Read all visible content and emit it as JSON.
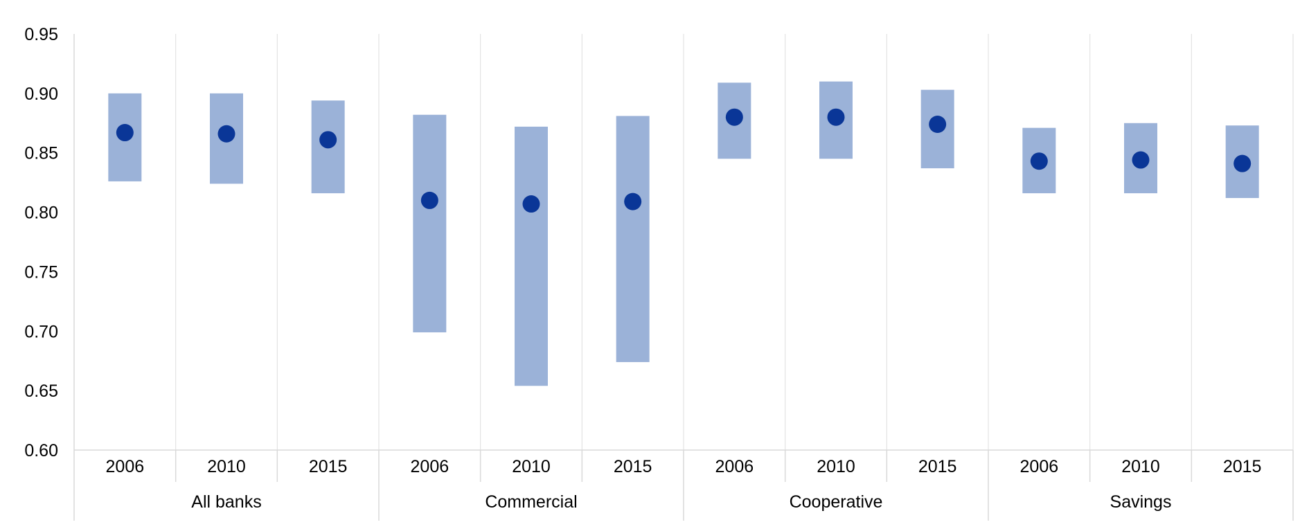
{
  "chart_data": {
    "type": "range-dot",
    "ylim": [
      0.6,
      0.95
    ],
    "yticks": [
      "0.60",
      "0.65",
      "0.70",
      "0.75",
      "0.80",
      "0.85",
      "0.90",
      "0.95"
    ],
    "grid": "vertical",
    "groups": [
      {
        "label": "All banks",
        "points": [
          {
            "year": "2006",
            "low": 0.826,
            "high": 0.9,
            "value": 0.867
          },
          {
            "year": "2010",
            "low": 0.824,
            "high": 0.9,
            "value": 0.866
          },
          {
            "year": "2015",
            "low": 0.816,
            "high": 0.894,
            "value": 0.861
          }
        ]
      },
      {
        "label": "Commercial",
        "points": [
          {
            "year": "2006",
            "low": 0.699,
            "high": 0.882,
            "value": 0.81
          },
          {
            "year": "2010",
            "low": 0.654,
            "high": 0.872,
            "value": 0.807
          },
          {
            "year": "2015",
            "low": 0.674,
            "high": 0.881,
            "value": 0.809
          }
        ]
      },
      {
        "label": "Cooperative",
        "points": [
          {
            "year": "2006",
            "low": 0.845,
            "high": 0.909,
            "value": 0.88
          },
          {
            "year": "2010",
            "low": 0.845,
            "high": 0.91,
            "value": 0.88
          },
          {
            "year": "2015",
            "low": 0.837,
            "high": 0.903,
            "value": 0.874
          }
        ]
      },
      {
        "label": "Savings",
        "points": [
          {
            "year": "2006",
            "low": 0.816,
            "high": 0.871,
            "value": 0.843
          },
          {
            "year": "2010",
            "low": 0.816,
            "high": 0.875,
            "value": 0.844
          },
          {
            "year": "2015",
            "low": 0.812,
            "high": 0.873,
            "value": 0.841
          }
        ]
      }
    ],
    "colors": {
      "range": "#9bb2d8",
      "dot": "#0a3697",
      "axis": "#d9d9d9",
      "grid": "#e3e3e3",
      "text": "#000000"
    }
  }
}
